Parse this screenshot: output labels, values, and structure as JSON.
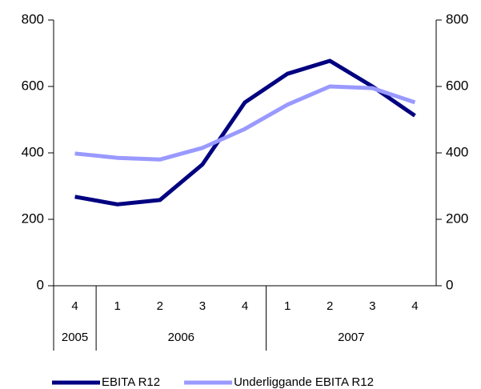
{
  "chart_data": {
    "type": "line",
    "categories": [
      "4",
      "1",
      "2",
      "3",
      "4",
      "1",
      "2",
      "3",
      "4"
    ],
    "category_groups": [
      "2005",
      "2006",
      null,
      null,
      null,
      "2007",
      null,
      null,
      null
    ],
    "series": [
      {
        "name": "EBITA R12",
        "color": "#000080",
        "values": [
          268,
          245,
          258,
          365,
          552,
          638,
          677,
          600,
          512
        ]
      },
      {
        "name": "Underliggande EBITA R12",
        "color": "#9999ff",
        "values": [
          398,
          385,
          380,
          415,
          472,
          545,
          600,
          595,
          552
        ]
      }
    ],
    "ylim": [
      0,
      800
    ],
    "yticks": [
      0,
      200,
      400,
      600,
      800
    ],
    "y2lim": [
      0,
      800
    ],
    "y2ticks": [
      0,
      200,
      400,
      600,
      800
    ],
    "legend": "bottom"
  }
}
